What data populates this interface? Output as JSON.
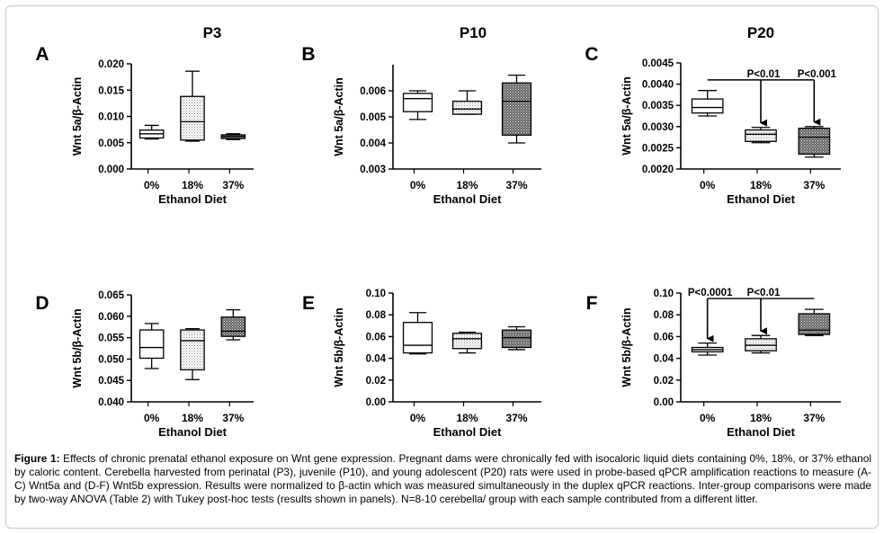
{
  "figure": {
    "columns": [
      "P3",
      "P10",
      "P20"
    ],
    "caption_label": "Figure 1:",
    "caption_text": " Effects of chronic prenatal ethanol exposure on Wnt gene expression. Pregnant dams were chronically fed with isocaloric liquid diets containing 0%, 18%, or 37% ethanol by caloric content. Cerebella harvested from perinatal (P3), juvenile (P10), and young adolescent (P20) rats were used in probe-based qPCR amplification reactions to measure (A-C) Wnt5a and (D-F) Wnt5b expression. Results were normalized to β-actin which was measured simultaneously in the duplex qPCR reactions. Inter-group comparisons were made by two-way ANOVA (Table 2) with Tukey post-hoc tests (results shown in panels). N=8-10 cerebella/ group with each sample contributed from a different litter."
  },
  "chart_data": [
    {
      "panel": "A",
      "type": "box",
      "column_title": "P3",
      "ylabel": "Wnt 5a/β-Actin",
      "xlabel": "Ethanol Diet",
      "categories": [
        "0%",
        "18%",
        "37%"
      ],
      "ylim": [
        0,
        0.02
      ],
      "yticks": [
        "0.000",
        "0.005",
        "0.010",
        "0.015",
        "0.020"
      ],
      "boxes": [
        {
          "min": 0.0057,
          "q1": 0.0059,
          "median": 0.0067,
          "q3": 0.0074,
          "max": 0.0083
        },
        {
          "min": 0.0053,
          "q1": 0.0055,
          "median": 0.009,
          "q3": 0.0138,
          "max": 0.0186
        },
        {
          "min": 0.0056,
          "q1": 0.0058,
          "median": 0.0062,
          "q3": 0.0065,
          "max": 0.0067
        }
      ],
      "annotations": []
    },
    {
      "panel": "B",
      "type": "box",
      "column_title": "P10",
      "ylabel": "Wnt 5a/β-Actin",
      "xlabel": "Ethanol Diet",
      "categories": [
        "0%",
        "18%",
        "37%"
      ],
      "ylim": [
        0.003,
        0.007
      ],
      "yticks": [
        "0.003",
        "0.004",
        "0.005",
        "0.006"
      ],
      "boxes": [
        {
          "min": 0.0049,
          "q1": 0.0052,
          "median": 0.0057,
          "q3": 0.0059,
          "max": 0.006
        },
        {
          "min": 0.0051,
          "q1": 0.0051,
          "median": 0.0053,
          "q3": 0.0056,
          "max": 0.006
        },
        {
          "min": 0.004,
          "q1": 0.0043,
          "median": 0.0056,
          "q3": 0.0063,
          "max": 0.0066
        }
      ],
      "annotations": []
    },
    {
      "panel": "C",
      "type": "box",
      "column_title": "P20",
      "ylabel": "Wnt 5a/β-Actin",
      "xlabel": "Ethanol Diet",
      "categories": [
        "0%",
        "18%",
        "37%"
      ],
      "ylim": [
        0.002,
        0.0045
      ],
      "yticks": [
        "0.0020",
        "0.0025",
        "0.0030",
        "0.0035",
        "0.0040",
        "0.0045"
      ],
      "boxes": [
        {
          "min": 0.00325,
          "q1": 0.00332,
          "median": 0.00345,
          "q3": 0.00365,
          "max": 0.00385
        },
        {
          "min": 0.00262,
          "q1": 0.00265,
          "median": 0.00282,
          "q3": 0.00292,
          "max": 0.00298
        },
        {
          "min": 0.00228,
          "q1": 0.00235,
          "median": 0.00275,
          "q3": 0.00296,
          "max": 0.003
        }
      ],
      "annotations": [
        {
          "text": "P<0.01",
          "target": 1
        },
        {
          "text": "P<0.001",
          "target": 2
        }
      ],
      "bracket_from": 0,
      "bracket_to": 2,
      "bracket_y": 0.0041
    },
    {
      "panel": "D",
      "type": "box",
      "ylabel": "Wnt 5b/β-Actin",
      "xlabel": "Ethanol Diet",
      "categories": [
        "0%",
        "18%",
        "37%"
      ],
      "ylim": [
        0.04,
        0.065
      ],
      "yticks": [
        "0.040",
        "0.045",
        "0.050",
        "0.055",
        "0.060",
        "0.065"
      ],
      "boxes": [
        {
          "min": 0.0478,
          "q1": 0.0502,
          "median": 0.0527,
          "q3": 0.0568,
          "max": 0.0583
        },
        {
          "min": 0.0452,
          "q1": 0.0475,
          "median": 0.0543,
          "q3": 0.0568,
          "max": 0.0571
        },
        {
          "min": 0.0545,
          "q1": 0.0553,
          "median": 0.0565,
          "q3": 0.0598,
          "max": 0.0615
        }
      ],
      "annotations": []
    },
    {
      "panel": "E",
      "type": "box",
      "ylabel": "Wnt 5b/β-Actin",
      "xlabel": "Ethanol Diet",
      "categories": [
        "0%",
        "18%",
        "37%"
      ],
      "ylim": [
        0,
        0.1
      ],
      "yticks": [
        "0.00",
        "0.02",
        "0.04",
        "0.06",
        "0.08",
        "0.10"
      ],
      "boxes": [
        {
          "min": 0.044,
          "q1": 0.045,
          "median": 0.052,
          "q3": 0.073,
          "max": 0.082
        },
        {
          "min": 0.045,
          "q1": 0.049,
          "median": 0.058,
          "q3": 0.063,
          "max": 0.064
        },
        {
          "min": 0.048,
          "q1": 0.05,
          "median": 0.059,
          "q3": 0.066,
          "max": 0.069
        }
      ],
      "annotations": []
    },
    {
      "panel": "F",
      "type": "box",
      "ylabel": "Wnt 5b/β-Actin",
      "xlabel": "Ethanol Diet",
      "categories": [
        "0%",
        "18%",
        "37%"
      ],
      "ylim": [
        0,
        0.1
      ],
      "yticks": [
        "0.00",
        "0.02",
        "0.04",
        "0.06",
        "0.08",
        "0.10"
      ],
      "boxes": [
        {
          "min": 0.043,
          "q1": 0.046,
          "median": 0.048,
          "q3": 0.05,
          "max": 0.054
        },
        {
          "min": 0.045,
          "q1": 0.047,
          "median": 0.052,
          "q3": 0.058,
          "max": 0.061
        },
        {
          "min": 0.061,
          "q1": 0.062,
          "median": 0.066,
          "q3": 0.081,
          "max": 0.085
        }
      ],
      "annotations": [
        {
          "text": "P<0.0001",
          "target": 0
        },
        {
          "text": "P<0.01",
          "target": 1
        }
      ],
      "bracket_from": 0,
      "bracket_to": 2,
      "bracket_y": 0.095
    }
  ]
}
